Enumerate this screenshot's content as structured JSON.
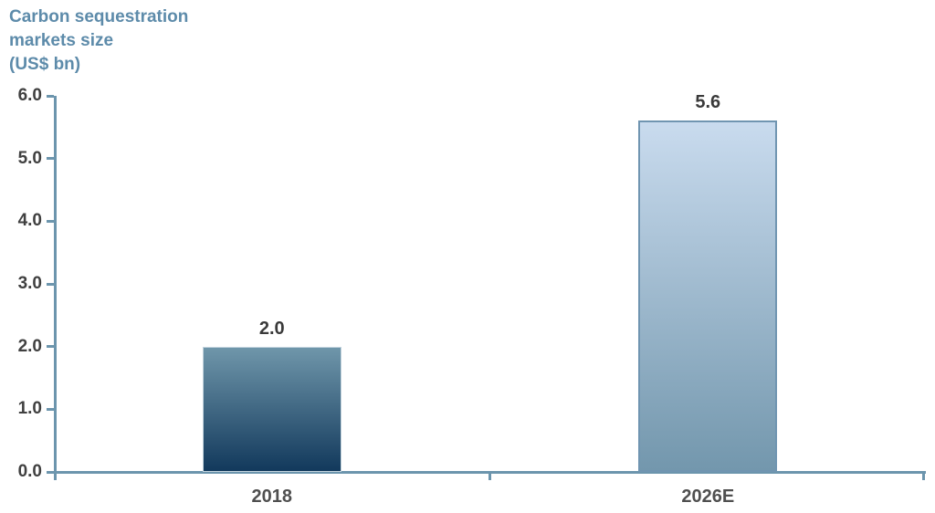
{
  "title": {
    "lines": [
      "Carbon sequestration",
      "markets size",
      "(US$ bn)"
    ]
  },
  "chart_data": {
    "type": "bar",
    "title": "Carbon sequestration markets size (US$ bn)",
    "xlabel": "",
    "ylabel": "Carbon sequestration markets size (US$ bn)",
    "categories": [
      "2018",
      "2026E"
    ],
    "values": [
      2.0,
      5.6
    ],
    "value_labels": [
      "2.0",
      "5.6"
    ],
    "ylim": [
      0,
      6
    ],
    "yticks": [
      0,
      1,
      2,
      3,
      4,
      5,
      6
    ],
    "ytick_labels": [
      "0.0",
      "1.0",
      "2.0",
      "3.0",
      "4.0",
      "5.0",
      "6.0"
    ],
    "grid": false,
    "legend": "none",
    "bar_styles": [
      {
        "gradient_top": "#6f96aa",
        "gradient_bottom": "#12395c",
        "border_color": "#c2d3dd",
        "border_width": 1
      },
      {
        "gradient_top": "#c9dbee",
        "gradient_bottom": "#7397ad",
        "border_color": "#7095b1",
        "border_width": 2
      }
    ]
  },
  "colors": {
    "background": "#ffffff",
    "title": "#5d8baa",
    "axis": "#6c95ad",
    "tick_label": "#404040",
    "value_label": "#3a3a3a",
    "category_label": "#4f4f4f"
  }
}
